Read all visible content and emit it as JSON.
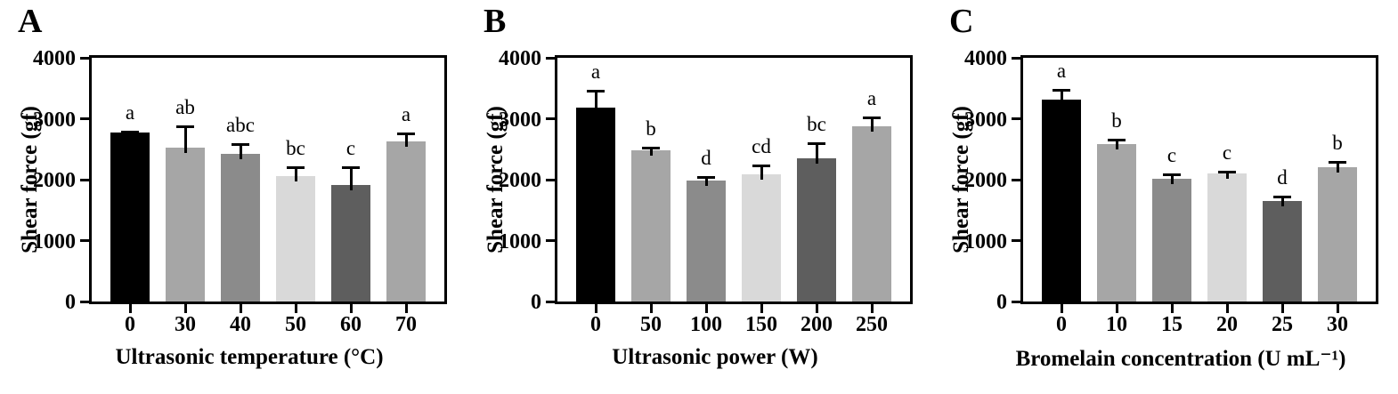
{
  "chart_data": [
    {
      "type": "bar",
      "panel_label": "A",
      "ylabel": "Shear force (gf)",
      "xlabel": "Ultrasonic temperature (°C)",
      "ylim": [
        0,
        4000
      ],
      "yticks": [
        0,
        1000,
        2000,
        3000,
        4000
      ],
      "grid": false,
      "legend": "none",
      "categories": [
        "0",
        "30",
        "40",
        "50",
        "60",
        "70"
      ],
      "values": [
        2770,
        2530,
        2420,
        2060,
        1910,
        2630
      ],
      "errors_upper": [
        40,
        360,
        185,
        160,
        310,
        150
      ],
      "sig_letters": [
        "a",
        "ab",
        "abc",
        "bc",
        "c",
        "a"
      ],
      "bar_colors": [
        "#000000",
        "#a6a6a6",
        "#8b8b8b",
        "#d9d9d9",
        "#5e5e5e",
        "#a6a6a6"
      ]
    },
    {
      "type": "bar",
      "panel_label": "B",
      "ylabel": "Shear force (gf)",
      "xlabel": "Ultrasonic power (W)",
      "ylim": [
        0,
        4000
      ],
      "yticks": [
        0,
        1000,
        2000,
        3000,
        4000
      ],
      "grid": false,
      "legend": "none",
      "categories": [
        "0",
        "50",
        "100",
        "150",
        "200",
        "250"
      ],
      "values": [
        3190,
        2480,
        1990,
        2090,
        2350,
        2880
      ],
      "errors_upper": [
        290,
        60,
        75,
        160,
        270,
        150
      ],
      "sig_letters": [
        "a",
        "b",
        "d",
        "cd",
        "bc",
        "a"
      ],
      "bar_colors": [
        "#000000",
        "#a6a6a6",
        "#8b8b8b",
        "#d9d9d9",
        "#5e5e5e",
        "#a6a6a6"
      ]
    },
    {
      "type": "bar",
      "panel_label": "C",
      "ylabel": "Shear force (gf)",
      "xlabel": "Bromelain concentration (U mL⁻¹)",
      "ylim": [
        0,
        4000
      ],
      "yticks": [
        0,
        1000,
        2000,
        3000,
        4000
      ],
      "grid": false,
      "legend": "none",
      "categories": [
        "0",
        "10",
        "15",
        "20",
        "25",
        "30"
      ],
      "values": [
        3310,
        2590,
        2020,
        2100,
        1650,
        2200
      ],
      "errors_upper": [
        185,
        75,
        85,
        50,
        90,
        110
      ],
      "sig_letters": [
        "a",
        "b",
        "c",
        "c",
        "d",
        "b"
      ],
      "bar_colors": [
        "#000000",
        "#a6a6a6",
        "#8b8b8b",
        "#d9d9d9",
        "#5e5e5e",
        "#a6a6a6"
      ]
    }
  ]
}
